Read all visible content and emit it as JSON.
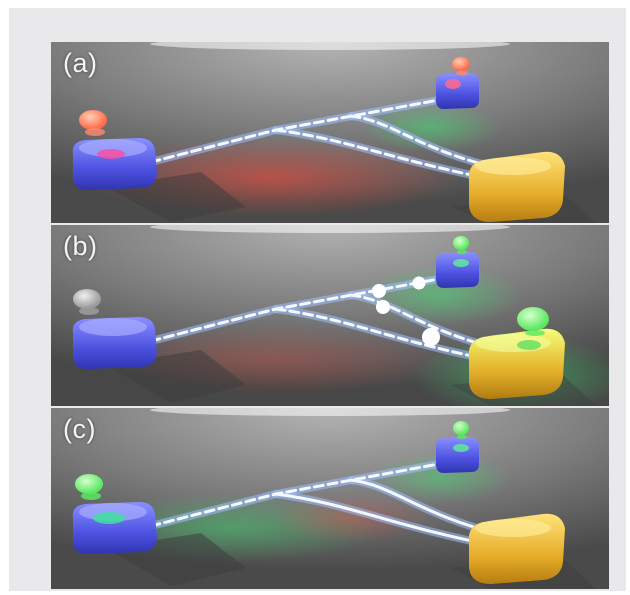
{
  "colors": {
    "frame_background": "#e9e9eb",
    "waveguide_core": "#f4f8ff",
    "source_box": "#5a5fe8",
    "detector_box": "#e8b532",
    "photon_red": "#ff8a6a",
    "photon_green": "#6dff78",
    "photon_gray": "#b8b8b8",
    "photon_white": "#ffffff"
  },
  "panels": [
    {
      "label": "(a)",
      "indicator_state": "red",
      "glow_color": "#ff5040"
    },
    {
      "label": "(b)",
      "indicator_state": "gray-green",
      "glow_color": "#40d860"
    },
    {
      "label": "(c)",
      "indicator_state": "green",
      "glow_color": "#40d860"
    }
  ]
}
